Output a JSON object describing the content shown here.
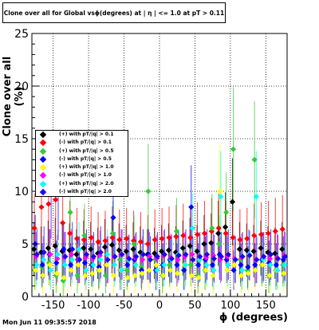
{
  "title": "Clone  over all for Global vsϕ(degrees) at | η | <= 1.0 at pT > 0.11",
  "footer": "Mon Jun 11 09:35:57 2018",
  "chart_data": {
    "type": "scatter",
    "xlabel": "ϕ (degrees)",
    "ylabel": "Clone  over all (%)",
    "xlim": [
      -180,
      180
    ],
    "ylim": [
      0,
      25
    ],
    "xticks": [
      "-150",
      "-100",
      "-50",
      "0",
      "50",
      "100",
      "150"
    ],
    "yticks": [
      "0",
      "5",
      "10",
      "15",
      "20",
      "25"
    ],
    "grid": true,
    "legend_position": "left-middle",
    "x": [
      -175,
      -165,
      -155,
      -145,
      -135,
      -125,
      -115,
      -105,
      -95,
      -85,
      -75,
      -65,
      -55,
      -45,
      -35,
      -25,
      -15,
      -5,
      5,
      15,
      25,
      35,
      45,
      55,
      65,
      75,
      85,
      95,
      105,
      115,
      125,
      135,
      145,
      155,
      165,
      175
    ],
    "series": [
      {
        "name": "(+) with pT/|q| > 0.1",
        "color": "#000000",
        "values": [
          4.5,
          4.2,
          4.6,
          4.8,
          4.3,
          4.4,
          4.0,
          4.6,
          4.5,
          4.1,
          4.7,
          4.9,
          4.4,
          4.3,
          4.5,
          4.2,
          4.0,
          4.1,
          4.3,
          4.4,
          4.2,
          4.6,
          4.8,
          4.3,
          5.0,
          5.1,
          6.0,
          6.6,
          9.0,
          4.5,
          4.4,
          4.3,
          4.6,
          4.2,
          4.1,
          4.5
        ]
      },
      {
        "name": "(-) with pT/|q| > 0.1",
        "color": "#ff0000",
        "values": [
          6.5,
          8.5,
          8.8,
          9.2,
          7.0,
          6.0,
          5.5,
          5.4,
          5.6,
          5.2,
          5.3,
          5.6,
          5.4,
          5.5,
          5.3,
          5.2,
          5.0,
          5.4,
          5.5,
          5.6,
          5.7,
          5.8,
          5.6,
          5.9,
          6.0,
          6.2,
          6.5,
          6.0,
          5.6,
          5.4,
          5.5,
          5.8,
          5.9,
          6.0,
          6.2,
          6.4
        ]
      },
      {
        "name": "(+) with pT/|q| > 0.5",
        "color": "#33cc33",
        "values": [
          2.5,
          2.8,
          3.2,
          2.0,
          1.5,
          8.0,
          2.0,
          5.8,
          3.0,
          2.5,
          2.0,
          6.0,
          3.5,
          2.5,
          5.0,
          2.8,
          10.0,
          3.5,
          2.0,
          3.0,
          6.2,
          2.5,
          3.0,
          2.0,
          2.5,
          6.5,
          5.0,
          8.0,
          14.0,
          3.5,
          2.5,
          13.0,
          3.0,
          2.0,
          2.5,
          3.0
        ]
      },
      {
        "name": "(-) with pT/|q| > 0.5",
        "color": "#0000ff",
        "values": [
          5.0,
          3.0,
          4.0,
          3.2,
          4.5,
          3.0,
          3.5,
          3.2,
          3.0,
          2.8,
          3.0,
          7.5,
          2.5,
          3.0,
          3.5,
          2.5,
          4.0,
          2.5,
          3.0,
          3.5,
          3.0,
          2.5,
          8.5,
          3.0,
          3.5,
          3.0,
          4.0,
          3.5,
          2.5,
          3.0,
          2.8,
          3.0,
          3.5,
          3.2,
          3.0,
          3.5
        ]
      },
      {
        "name": "(+) with pT/|q| > 1.0",
        "color": "#ffff00",
        "values": [
          2.5,
          2.0,
          3.0,
          2.2,
          1.8,
          2.5,
          3.0,
          2.0,
          2.2,
          2.5,
          3.0,
          2.0,
          2.5,
          1.8,
          2.0,
          2.2,
          2.5,
          3.0,
          2.0,
          2.5,
          2.2,
          3.0,
          2.0,
          1.8,
          2.5,
          2.0,
          10.0,
          2.5,
          3.0,
          2.0,
          2.2,
          2.5,
          3.0,
          2.0,
          2.5,
          2.2
        ]
      },
      {
        "name": "(-) with pT/|q| > 1.0",
        "color": "#ff00ff",
        "values": [
          3.8,
          3.5,
          4.0,
          3.6,
          3.8,
          4.0,
          3.5,
          3.7,
          3.6,
          3.9,
          3.5,
          3.8,
          4.0,
          3.6,
          3.7,
          3.5,
          3.8,
          3.6,
          3.9,
          3.7,
          3.5,
          3.8,
          4.0,
          3.6,
          3.7,
          3.9,
          3.5,
          3.8,
          3.6,
          3.7,
          4.0,
          3.5,
          3.8,
          3.6,
          3.7,
          3.9
        ]
      },
      {
        "name": "(+) with pT/|q| > 2.0",
        "color": "#00ffff",
        "values": [
          3.0,
          3.5,
          2.5,
          4.0,
          3.0,
          3.5,
          4.5,
          2.5,
          3.0,
          3.5,
          4.0,
          3.0,
          2.5,
          3.5,
          3.0,
          4.0,
          3.5,
          2.5,
          3.0,
          3.5,
          4.0,
          3.0,
          6.5,
          3.5,
          3.0,
          2.5,
          9.5,
          3.0,
          3.5,
          2.5,
          4.0,
          9.5,
          3.5,
          3.0,
          2.5,
          3.0
        ]
      },
      {
        "name": "(-) with pT/|q| > 2.0",
        "color": "#2200ee",
        "values": [
          4.0,
          4.2,
          10.0,
          9.8,
          3.8,
          4.5,
          3.5,
          4.0,
          3.8,
          4.2,
          3.5,
          3.8,
          4.0,
          3.6,
          3.8,
          4.0,
          3.5,
          3.8,
          4.0,
          3.6,
          3.9,
          4.0,
          3.5,
          3.8,
          4.0,
          3.6,
          3.8,
          4.0,
          3.5,
          3.8,
          3.9,
          3.5,
          3.8,
          4.0,
          3.6,
          3.8
        ]
      }
    ],
    "legend_labels": [
      "(+) with pT/|q| > 0.1",
      "(-) with pT/|q| > 0.1",
      "(+) with pT/|q| > 0.5",
      "(-) with pT/|q| > 0.5",
      "(+) with pT/|q| > 1.0",
      "(-) with pT/|q| > 1.0",
      "(+) with pT/|q| > 2.0",
      "(-) with pT/|q| > 2.0"
    ]
  }
}
